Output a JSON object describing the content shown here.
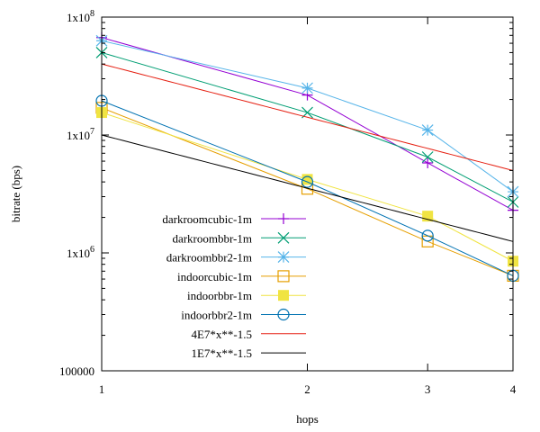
{
  "chart_data": {
    "type": "line",
    "title": "",
    "xlabel": "hops",
    "ylabel": "bitrate (bps)",
    "xscale": "log",
    "yscale": "log",
    "xlim": [
      1,
      4
    ],
    "ylim": [
      100000,
      100000000
    ],
    "grid": false,
    "legend_position": "left-center",
    "x_ticks": [
      {
        "value": 1,
        "label": "1"
      },
      {
        "value": 2,
        "label": "2"
      },
      {
        "value": 3,
        "label": "3"
      },
      {
        "value": 4,
        "label": "4"
      }
    ],
    "y_ticks": [
      {
        "value": 100000,
        "label": "100000",
        "sup": ""
      },
      {
        "value": 1000000,
        "label": "1x10",
        "sup": "6"
      },
      {
        "value": 10000000,
        "label": "1x10",
        "sup": "7"
      },
      {
        "value": 100000000,
        "label": "1x10",
        "sup": "8"
      }
    ],
    "series": [
      {
        "name": "darkroomcubic-1m",
        "color": "#9400d3",
        "marker": "plus",
        "x": [
          1,
          2,
          3,
          4
        ],
        "y": [
          67000000,
          21800000,
          5800000,
          2300000
        ]
      },
      {
        "name": "darkroombbr-1m",
        "color": "#009e73",
        "marker": "cross",
        "x": [
          1,
          2,
          3,
          4
        ],
        "y": [
          50000000,
          15500000,
          6500000,
          2700000
        ]
      },
      {
        "name": "darkroombbr2-1m",
        "color": "#56b4e9",
        "marker": "star",
        "x": [
          1,
          2,
          3,
          4
        ],
        "y": [
          63000000,
          25000000,
          11000000,
          3300000
        ]
      },
      {
        "name": "indoorcubic-1m",
        "color": "#e69f00",
        "marker": "square-open",
        "x": [
          1,
          2,
          3,
          4
        ],
        "y": [
          17000000,
          3500000,
          1250000,
          640000
        ]
      },
      {
        "name": "indoorbbr-1m",
        "color": "#f0e442",
        "marker": "square-filled",
        "x": [
          1,
          2,
          3,
          4
        ],
        "y": [
          15500000,
          4200000,
          2050000,
          850000
        ]
      },
      {
        "name": "indoorbbr2-1m",
        "color": "#0072b2",
        "marker": "circle-open",
        "x": [
          1,
          2,
          3,
          4
        ],
        "y": [
          19500000,
          4000000,
          1400000,
          640000
        ]
      },
      {
        "name": "4E7*x**-1.5",
        "color": "#e51e10",
        "marker": "none",
        "function": {
          "coef": 40000000,
          "exp": -1.5
        }
      },
      {
        "name": "1E7*x**-1.5",
        "color": "#000000",
        "marker": "none",
        "function": {
          "coef": 10000000,
          "exp": -1.5
        }
      }
    ]
  }
}
